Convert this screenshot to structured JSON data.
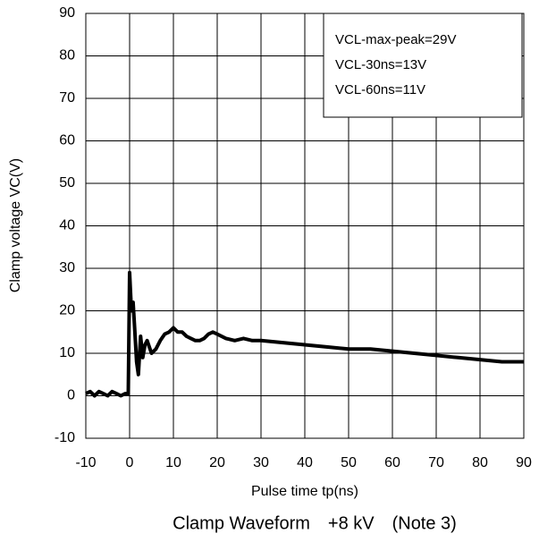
{
  "chart_data": {
    "type": "line",
    "caption": "Clamp Waveform　+8 kV　(Note 3)",
    "xlabel": "Pulse time tp(ns)",
    "ylabel": "Clamp voltage VC(V)",
    "annotations": [
      "VCL-max-peak=29V",
      "VCL-30ns=13V",
      "VCL-60ns=11V"
    ],
    "x": [
      -10,
      -9,
      -8,
      -7,
      -6,
      -5,
      -4,
      -3,
      -2,
      -1,
      -0.3,
      0,
      0.4,
      0.8,
      1.2,
      1.6,
      2,
      2.5,
      3,
      3.5,
      4,
      5,
      6,
      7,
      8,
      9,
      10,
      11,
      12,
      13,
      14,
      15,
      16,
      17,
      18,
      19,
      20,
      22,
      24,
      26,
      28,
      30,
      35,
      40,
      45,
      50,
      55,
      60,
      65,
      70,
      75,
      80,
      85,
      90
    ],
    "values": [
      0.5,
      1,
      0,
      1,
      0.5,
      0,
      1,
      0.5,
      0,
      0.5,
      0.5,
      29,
      20,
      22,
      15,
      8,
      5,
      14,
      9,
      12,
      13,
      10,
      11,
      13,
      14.5,
      15,
      16,
      15,
      15,
      14,
      13.5,
      13,
      13,
      13.5,
      14.5,
      15,
      14.5,
      13.5,
      13,
      13.5,
      13,
      13,
      12.5,
      12,
      11.5,
      11,
      11,
      10.5,
      10,
      9.5,
      9,
      8.5,
      8,
      8
    ],
    "color": "#000000",
    "xlim": [
      -10,
      90
    ],
    "xticks": [
      -10,
      0,
      10,
      20,
      30,
      40,
      50,
      60,
      70,
      80,
      90
    ],
    "ylim": [
      -10,
      90
    ],
    "yticks": [
      -10,
      0,
      10,
      20,
      30,
      40,
      50,
      60,
      70,
      80,
      90
    ],
    "grid": true
  }
}
